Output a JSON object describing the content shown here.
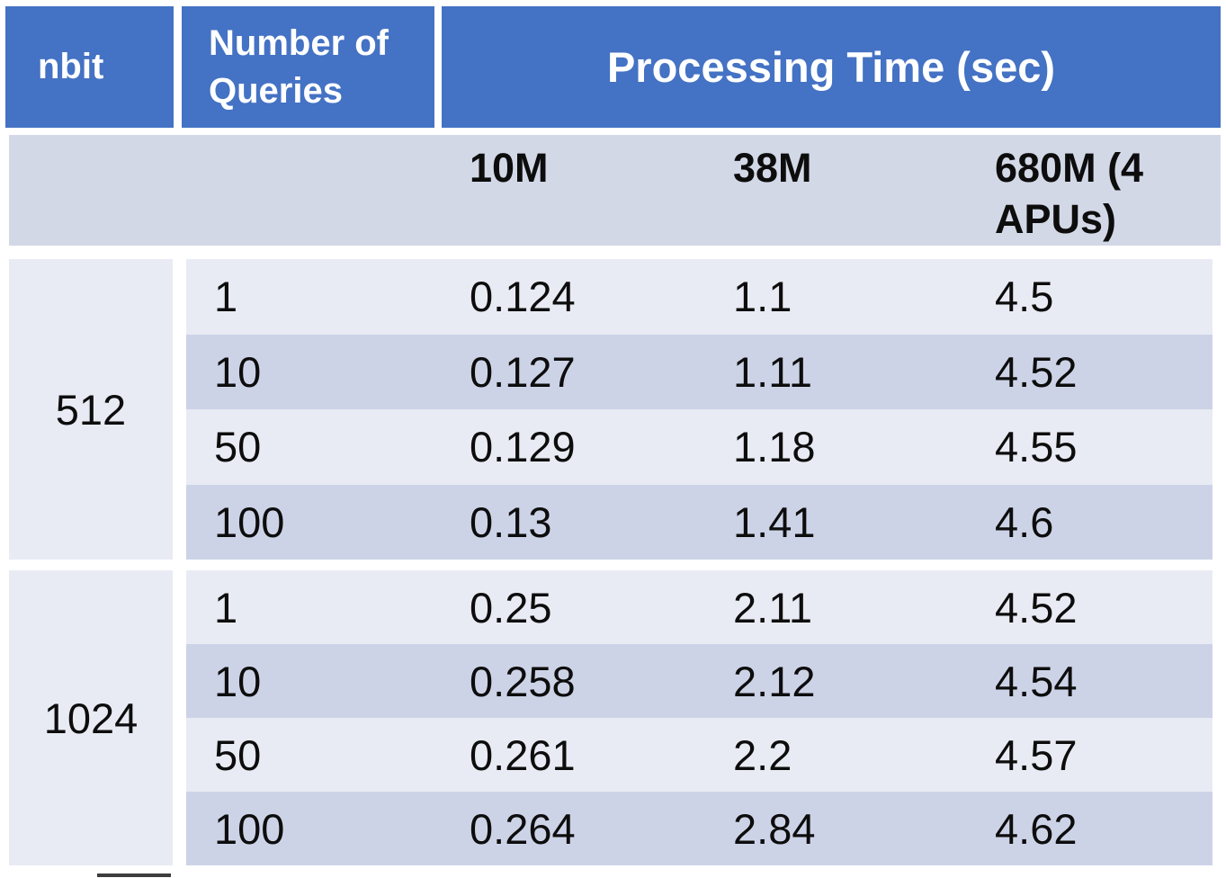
{
  "table": {
    "header": {
      "nbit": "nbit",
      "queries": "Number of Queries",
      "processing": "Processing Time (sec)"
    },
    "subheader": {
      "c10m": "10M",
      "c38m": "38M",
      "c680m": "680M (4 APUs)"
    },
    "groups": [
      {
        "nbit": "512",
        "rows": [
          {
            "queries": "1",
            "t10m": "0.124",
            "t38m": "1.1",
            "t680m": "4.5"
          },
          {
            "queries": "10",
            "t10m": "0.127",
            "t38m": "1.11",
            "t680m": "4.52"
          },
          {
            "queries": "50",
            "t10m": "0.129",
            "t38m": "1.18",
            "t680m": "4.55"
          },
          {
            "queries": "100",
            "t10m": "0.13",
            "t38m": "1.41",
            "t680m": "4.6"
          }
        ]
      },
      {
        "nbit": "1024",
        "rows": [
          {
            "queries": "1",
            "t10m": "0.25",
            "t38m": "2.11",
            "t680m": "4.52"
          },
          {
            "queries": "10",
            "t10m": "0.258",
            "t38m": "2.12",
            "t680m": "4.54"
          },
          {
            "queries": "50",
            "t10m": "0.261",
            "t38m": "2.2",
            "t680m": "4.57"
          },
          {
            "queries": "100",
            "t10m": "0.264",
            "t38m": "2.84",
            "t680m": "4.62"
          }
        ]
      }
    ]
  },
  "colors": {
    "header_blue": "#4472C4",
    "header_text": "#FFFFFF",
    "subheader_band": "#D3D8E7",
    "band_light": "#E9EBF4",
    "band_dark": "#CDD3E7",
    "body_text": "#0D0D0D",
    "background": "#FFFFFF"
  },
  "chart_data": {
    "type": "table",
    "title": "Processing Time (sec)",
    "columns": [
      "nbit",
      "Number of Queries",
      "10M",
      "38M",
      "680M (4 APUs)"
    ],
    "rows": [
      [
        512,
        1,
        0.124,
        1.1,
        4.5
      ],
      [
        512,
        10,
        0.127,
        1.11,
        4.52
      ],
      [
        512,
        50,
        0.129,
        1.18,
        4.55
      ],
      [
        512,
        100,
        0.13,
        1.41,
        4.6
      ],
      [
        1024,
        1,
        0.25,
        2.11,
        4.52
      ],
      [
        1024,
        10,
        0.258,
        2.12,
        4.54
      ],
      [
        1024,
        50,
        0.261,
        2.2,
        4.57
      ],
      [
        1024,
        100,
        0.264,
        2.84,
        4.62
      ]
    ],
    "notes": "Processing Time (sec) spans the 10M, 38M and 680M (4 APUs) dataset columns; rows banded light/dark; nbit cells merged per group"
  }
}
